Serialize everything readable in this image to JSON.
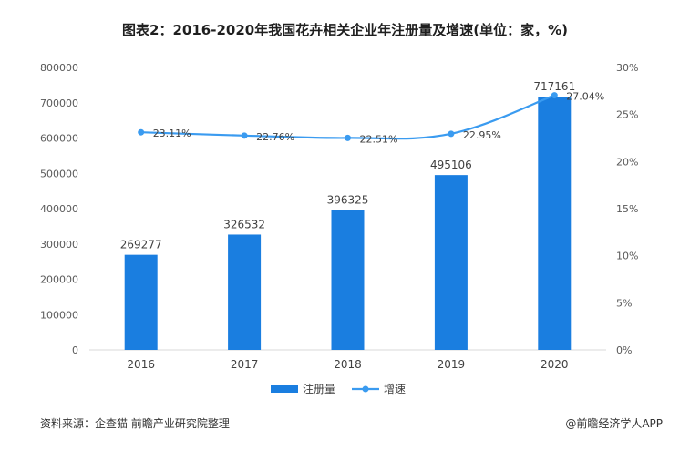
{
  "title": "图表2：2016-2020年我国花卉相关企业年注册量及增速(单位：家，%)",
  "chart_data": {
    "type": "bar+line",
    "categories": [
      "2016",
      "2017",
      "2018",
      "2019",
      "2020"
    ],
    "series": [
      {
        "name": "注册量",
        "type": "bar",
        "axis": "left",
        "values": [
          269277,
          326532,
          396325,
          495106,
          717161
        ]
      },
      {
        "name": "增速",
        "type": "line",
        "axis": "right",
        "values": [
          23.11,
          22.76,
          22.51,
          22.95,
          27.04
        ],
        "labels": [
          "23.11%",
          "22.76%",
          "22.51%",
          "22.95%",
          "27.04%"
        ]
      }
    ],
    "y_left": {
      "min": 0,
      "max": 800000,
      "ticks": [
        "0",
        "100000",
        "200000",
        "300000",
        "400000",
        "500000",
        "600000",
        "700000",
        "800000"
      ]
    },
    "y_right": {
      "min": 0,
      "max": 30,
      "ticks": [
        "0%",
        "5%",
        "10%",
        "15%",
        "20%",
        "25%",
        "30%"
      ]
    },
    "legend": {
      "position": "bottom"
    },
    "colors": {
      "bar": "#1a7ee0",
      "line": "#3a9bf0"
    }
  },
  "footer": {
    "source": "资料来源：企查猫 前瞻产业研究院整理",
    "brand": "@前瞻经济学人APP"
  }
}
